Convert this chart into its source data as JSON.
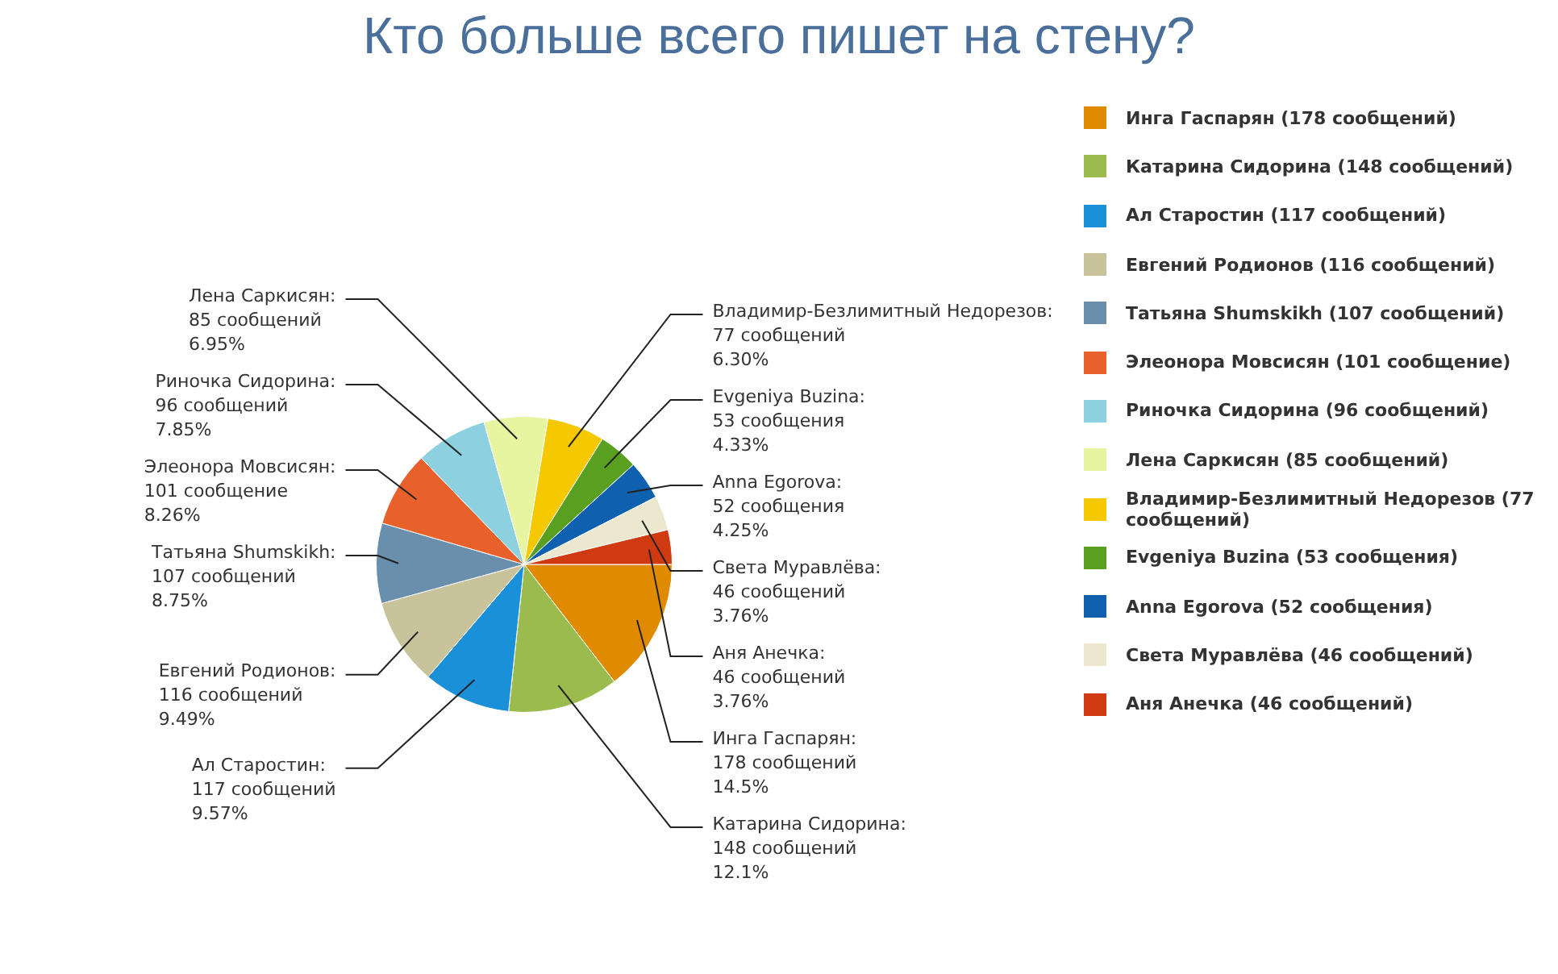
{
  "chart_data": {
    "type": "pie",
    "title": "Кто больше всего пишет на стену?",
    "legend": "right",
    "categories": [
      "Инга Гаспарян (178 сообщений)",
      "Катарина Сидорина (148 сообщений)",
      "Ал Старостин (117 сообщений)",
      "Евгений Родионов (116 сообщений)",
      "Татьяна Shumskikh (107 сообщений)",
      "Элеонора Мовсисян (101 сообщение)",
      "Риночка Сидорина (96 сообщений)",
      "Лена Саркисян (85 сообщений)",
      "Владимир-Безлимитный Недорезов (77 сообщений)",
      "Evgeniya Buzina (53 сообщения)",
      "Anna Egorova (52 сообщения)",
      "Света Муравлёва (46 сообщений)",
      "Аня Анечка (46 сообщений)"
    ],
    "values": [
      178,
      148,
      117,
      116,
      107,
      101,
      96,
      85,
      77,
      53,
      52,
      46,
      46
    ],
    "value_labels": [
      "Инга Гаспарян:\n178 сообщений\n14.5%",
      "Катарина Сидорина:\n148 сообщений\n12.1%",
      "Ал Старостин:\n117 сообщений\n9.57%",
      "Евгений Родионов:\n116 сообщений\n9.49%",
      "Татьяна Shumskikh:\n107 сообщений\n8.75%",
      "Элеонора Мовсисян:\n101 сообщение\n8.26%",
      "Риночка Сидорина:\n96 сообщений\n7.85%",
      "Лена Саркисян:\n85 сообщений\n6.95%",
      "Владимир-Безлимитный Недорезов:\n77 сообщений\n6.30%",
      "Evgeniya Buzina:\n53 сообщения\n4.33%",
      "Anna Egorova:\n52 сообщения\n4.25%",
      "Света Муравлёва:\n46 сообщений\n3.76%",
      "Аня Анечка:\n46 сообщений\n3.76%"
    ],
    "colors": [
      "#e08a00",
      "#9bbb4f",
      "#1a90d8",
      "#c8c39a",
      "#6a8fad",
      "#e8602a",
      "#8dd0e0",
      "#e7f5a0",
      "#f5c800",
      "#5aa020",
      "#1060b0",
      "#ece8d0",
      "#d03a10"
    ]
  }
}
